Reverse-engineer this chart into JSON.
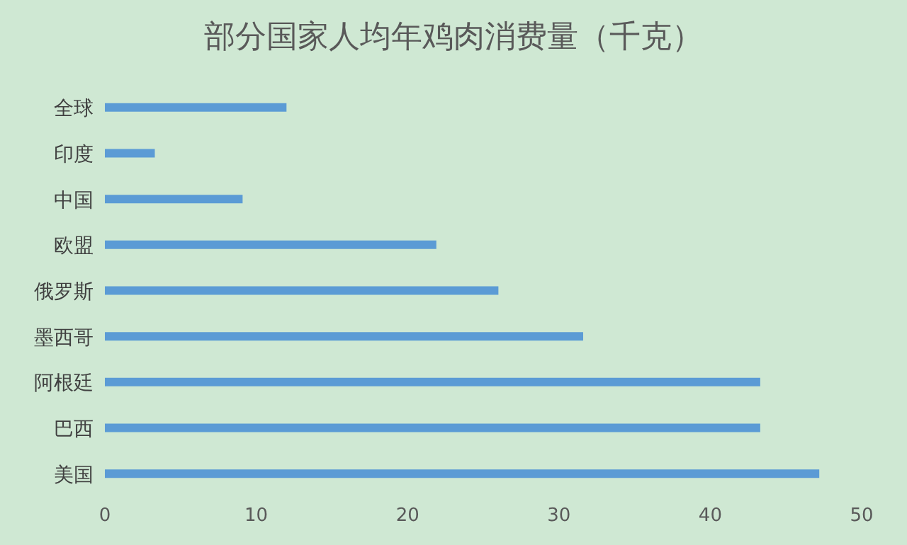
{
  "chart_data": {
    "type": "bar",
    "orientation": "horizontal",
    "title": "部分国家人均年鸡肉消费量（千克）",
    "categories": [
      "全球",
      "印度",
      "中国",
      "欧盟",
      "俄罗斯",
      "墨西哥",
      "阿根廷",
      "巴西",
      "美国"
    ],
    "values": [
      12.0,
      3.3,
      9.1,
      21.9,
      26.0,
      31.6,
      43.3,
      43.3,
      47.2
    ],
    "color": "#5b9bd5",
    "xlim": [
      0,
      50
    ],
    "xticks": [
      0,
      10,
      20,
      30,
      40,
      50
    ],
    "grid": false,
    "legend": false
  }
}
